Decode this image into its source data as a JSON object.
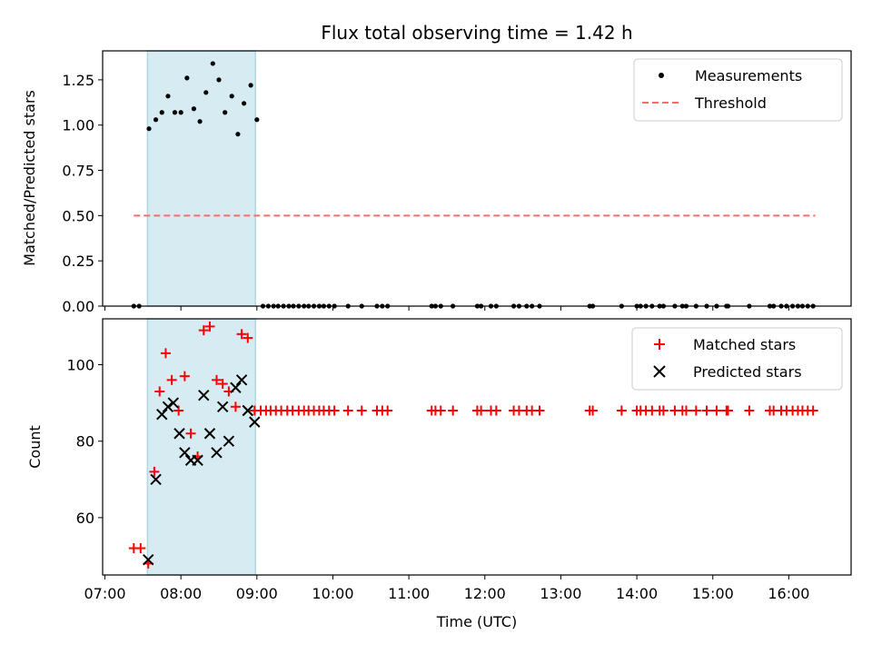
{
  "colors": {
    "shade": "#add8e6",
    "measurement": "#000000",
    "threshold": "#ff6b6b",
    "matched": "#ff0000",
    "predicted": "#000000"
  },
  "chart_data": [
    {
      "type": "scatter",
      "title": "Flux total observing time = 1.42 h",
      "xlabel": "",
      "ylabel": "Matched/Predicted stars",
      "xlim_hours": [
        6.97,
        16.82
      ],
      "ylim": [
        0,
        1.41
      ],
      "yticks": [
        0.0,
        0.25,
        0.5,
        0.75,
        1.0,
        1.25
      ],
      "ytick_labels": [
        "0.00",
        "0.25",
        "0.50",
        "0.75",
        "1.00",
        "1.25"
      ],
      "shaded_region_hours": [
        7.56,
        8.98
      ],
      "threshold": {
        "value": 0.5,
        "x_start_hours": 7.38,
        "x_end_hours": 16.35
      },
      "legend": {
        "placement": "upper right",
        "entries": [
          "Measurements",
          "Threshold"
        ]
      },
      "measurements": {
        "x_hours": [
          7.38,
          7.45,
          7.58,
          7.67,
          7.75,
          7.83,
          7.92,
          8.0,
          8.08,
          8.17,
          8.25,
          8.33,
          8.42,
          8.5,
          8.58,
          8.67,
          8.75,
          8.83,
          8.92,
          9.0,
          9.08,
          9.15,
          9.22,
          9.28,
          9.35,
          9.42,
          9.48,
          9.55,
          9.62,
          9.68,
          9.75,
          9.82,
          9.88,
          9.95,
          10.02,
          10.2,
          10.38,
          10.58,
          10.65,
          10.72,
          11.3,
          11.35,
          11.42,
          11.58,
          11.9,
          11.95,
          12.08,
          12.15,
          12.38,
          12.45,
          12.55,
          12.62,
          12.72,
          13.38,
          13.42,
          13.8,
          14.0,
          14.05,
          14.12,
          14.2,
          14.3,
          14.35,
          14.5,
          14.6,
          14.65,
          14.78,
          14.92,
          15.05,
          15.18,
          15.2,
          15.48,
          15.75,
          15.8,
          15.9,
          15.97,
          16.05,
          16.12,
          16.18,
          16.25,
          16.32
        ],
        "y": [
          0,
          0,
          0.98,
          1.03,
          1.07,
          1.16,
          1.07,
          1.07,
          1.26,
          1.09,
          1.02,
          1.18,
          1.34,
          1.25,
          1.07,
          1.16,
          0.95,
          1.12,
          1.22,
          1.03,
          0,
          0,
          0,
          0,
          0,
          0,
          0,
          0,
          0,
          0,
          0,
          0,
          0,
          0,
          0,
          0,
          0,
          0,
          0,
          0,
          0,
          0,
          0,
          0,
          0,
          0,
          0,
          0,
          0,
          0,
          0,
          0,
          0,
          0,
          0,
          0,
          0,
          0,
          0,
          0,
          0,
          0,
          0,
          0,
          0,
          0,
          0,
          0,
          0,
          0,
          0,
          0,
          0,
          0,
          0,
          0,
          0,
          0,
          0,
          0
        ]
      }
    },
    {
      "type": "scatter",
      "title": "",
      "xlabel": "Time (UTC)",
      "ylabel": "Count",
      "xlim_hours": [
        6.97,
        16.82
      ],
      "ylim": [
        45,
        112
      ],
      "yticks": [
        60,
        80,
        100
      ],
      "ytick_labels": [
        "60",
        "80",
        "100"
      ],
      "xticks_hours": [
        7,
        8,
        9,
        10,
        11,
        12,
        13,
        14,
        15,
        16
      ],
      "xtick_labels": [
        "07:00",
        "08:00",
        "09:00",
        "10:00",
        "11:00",
        "12:00",
        "13:00",
        "14:00",
        "15:00",
        "16:00"
      ],
      "shaded_region_hours": [
        7.56,
        8.98
      ],
      "legend": {
        "placement": "upper right",
        "entries": [
          "Matched stars",
          "Predicted stars"
        ]
      },
      "series": [
        {
          "name": "Matched stars",
          "marker": "+",
          "x_hours": [
            7.38,
            7.47,
            7.57,
            7.65,
            7.72,
            7.8,
            7.88,
            7.97,
            8.05,
            8.13,
            8.22,
            8.3,
            8.38,
            8.47,
            8.55,
            8.63,
            8.72,
            8.8,
            8.88,
            8.97,
            9.05,
            9.12,
            9.18,
            9.25,
            9.32,
            9.4,
            9.47,
            9.55,
            9.62,
            9.68,
            9.75,
            9.82,
            9.88,
            9.95,
            10.02,
            10.2,
            10.38,
            10.58,
            10.65,
            10.72,
            11.3,
            11.35,
            11.42,
            11.58,
            11.9,
            11.95,
            12.08,
            12.15,
            12.38,
            12.45,
            12.55,
            12.62,
            12.72,
            13.38,
            13.42,
            13.8,
            14.0,
            14.05,
            14.12,
            14.2,
            14.3,
            14.35,
            14.5,
            14.6,
            14.65,
            14.78,
            14.92,
            15.05,
            15.18,
            15.2,
            15.48,
            15.75,
            15.8,
            15.9,
            15.97,
            16.05,
            16.12,
            16.18,
            16.25,
            16.32
          ],
          "values": [
            52,
            52,
            48,
            72,
            93,
            103,
            96,
            88,
            97,
            82,
            76,
            109,
            110,
            96,
            95,
            93,
            89,
            108,
            107,
            88,
            88,
            88,
            88,
            88,
            88,
            88,
            88,
            88,
            88,
            88,
            88,
            88,
            88,
            88,
            88,
            88,
            88,
            88,
            88,
            88,
            88,
            88,
            88,
            88,
            88,
            88,
            88,
            88,
            88,
            88,
            88,
            88,
            88,
            88,
            88,
            88,
            88,
            88,
            88,
            88,
            88,
            88,
            88,
            88,
            88,
            88,
            88,
            88,
            88,
            88,
            88,
            88,
            88,
            88,
            88,
            88,
            88,
            88,
            88,
            88
          ]
        },
        {
          "name": "Predicted stars",
          "marker": "x",
          "x_hours": [
            7.57,
            7.67,
            7.75,
            7.83,
            7.9,
            7.98,
            8.05,
            8.13,
            8.22,
            8.3,
            8.38,
            8.47,
            8.55,
            8.63,
            8.72,
            8.8,
            8.88,
            8.97
          ],
          "values": [
            49,
            70,
            87,
            89,
            90,
            82,
            77,
            75,
            75,
            92,
            82,
            77,
            89,
            80,
            94,
            96,
            88,
            85
          ]
        }
      ]
    }
  ]
}
